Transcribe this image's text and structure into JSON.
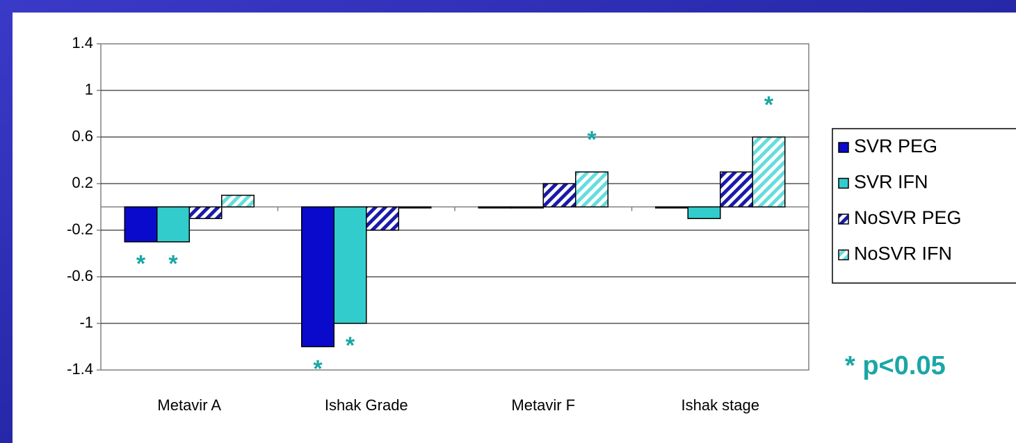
{
  "chart_data": {
    "type": "bar",
    "categories": [
      "Metavir A",
      "Ishak Grade",
      "Metavir F",
      "Ishak stage"
    ],
    "series": [
      {
        "name": "SVR PEG",
        "color": "#0a0acc",
        "pattern": "solid",
        "values": [
          -0.3,
          -1.2,
          0,
          0
        ]
      },
      {
        "name": "SVR IFN",
        "color": "#33cccc",
        "pattern": "solid",
        "values": [
          -0.3,
          -1.0,
          0,
          -0.1
        ]
      },
      {
        "name": "NoSVR PEG",
        "color": "#1a1aaa",
        "pattern": "hatch",
        "values": [
          -0.1,
          -0.2,
          0.2,
          0.3
        ]
      },
      {
        "name": "NoSVR IFN",
        "color": "#66dddd",
        "pattern": "hatch",
        "values": [
          0.1,
          0,
          0.3,
          0.6
        ]
      }
    ],
    "ylim": [
      -1.4,
      1.4
    ],
    "yticks": [
      1.4,
      1,
      0.6,
      0.2,
      -0.2,
      -0.6,
      -1,
      -1.4
    ],
    "grid": true,
    "legend": "right",
    "annotations": [
      {
        "text": "*",
        "category": "Metavir A",
        "series": "SVR PEG"
      },
      {
        "text": "*",
        "category": "Metavir A",
        "series": "SVR IFN"
      },
      {
        "text": "*",
        "category": "Ishak Grade",
        "series": "SVR PEG"
      },
      {
        "text": "*",
        "category": "Ishak Grade",
        "series": "SVR IFN"
      },
      {
        "text": "*",
        "category": "Metavir F",
        "series": "NoSVR IFN"
      },
      {
        "text": "*",
        "category": "Ishak stage",
        "series": "NoSVR IFN"
      }
    ],
    "note": "* p<0.05"
  }
}
